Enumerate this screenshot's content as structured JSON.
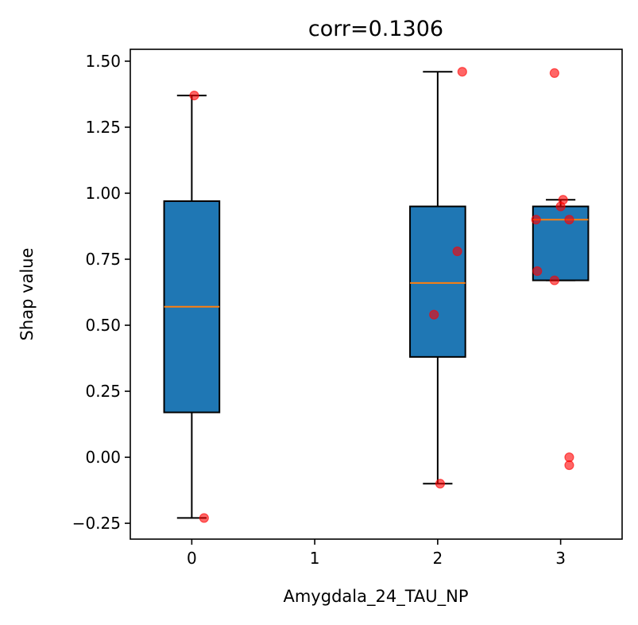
{
  "chart_data": {
    "type": "box",
    "title": "corr=0.1306",
    "xlabel": "Amygdala_24_TAU_NP",
    "ylabel": "Shap value",
    "xlim": [
      -0.5,
      3.5
    ],
    "ylim": [
      -0.31,
      1.545
    ],
    "x_ticks": [
      0,
      1,
      2,
      3
    ],
    "x_tick_labels": [
      "0",
      "1",
      "2",
      "3"
    ],
    "y_ticks": [
      -0.25,
      0.0,
      0.25,
      0.5,
      0.75,
      1.0,
      1.25,
      1.5
    ],
    "y_tick_labels": [
      "−0.25",
      "0.00",
      "0.25",
      "0.50",
      "0.75",
      "1.00",
      "1.25",
      "1.50"
    ],
    "box_color": "#1f77b4",
    "median_color": "#ff7f0e",
    "point_color": "#ff0000",
    "boxes": [
      {
        "position": 0,
        "whisker_low": -0.23,
        "q1": 0.17,
        "median": 0.57,
        "q3": 0.97,
        "whisker_high": 1.37
      },
      {
        "position": 2,
        "whisker_low": -0.1,
        "q1": 0.38,
        "median": 0.66,
        "q3": 0.95,
        "whisker_high": 1.46
      },
      {
        "position": 3,
        "whisker_low": 0.67,
        "q1": 0.67,
        "median": 0.9,
        "q3": 0.95,
        "whisker_high": 0.975
      }
    ],
    "points": [
      {
        "x": 0.02,
        "y": 1.37
      },
      {
        "x": 0.1,
        "y": -0.23
      },
      {
        "x": 1.97,
        "y": 0.54
      },
      {
        "x": 2.16,
        "y": 0.78
      },
      {
        "x": 2.02,
        "y": -0.1
      },
      {
        "x": 2.2,
        "y": 1.46
      },
      {
        "x": 2.95,
        "y": 1.455
      },
      {
        "x": 2.8,
        "y": 0.9
      },
      {
        "x": 2.81,
        "y": 0.705
      },
      {
        "x": 2.95,
        "y": 0.67
      },
      {
        "x": 3.02,
        "y": 0.975
      },
      {
        "x": 3.0,
        "y": 0.95
      },
      {
        "x": 3.07,
        "y": 0.9
      },
      {
        "x": 3.07,
        "y": 0.0
      },
      {
        "x": 3.07,
        "y": -0.03
      }
    ]
  }
}
